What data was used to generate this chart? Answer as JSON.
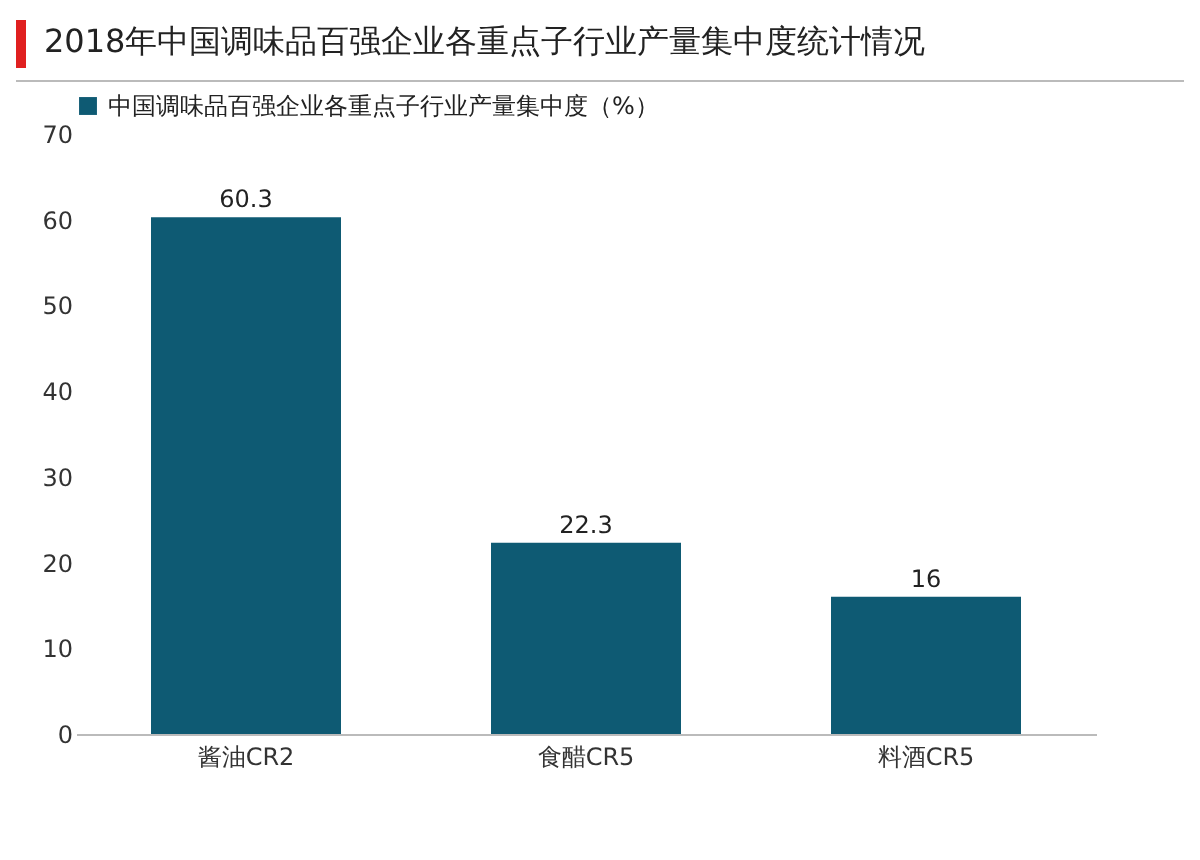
{
  "chart_data": {
    "type": "bar",
    "title": "2018年中国调味品百强企业各重点子行业产量集中度统计情况",
    "categories": [
      "酱油CR2",
      "食醋CR5",
      "料酒CR5"
    ],
    "series": [
      {
        "name": "中国调味品百强企业各重点子行业产量集中度（%）",
        "color": "#0e5a73",
        "values": [
          60.3,
          22.3,
          16
        ]
      }
    ],
    "ylim": [
      0,
      70
    ],
    "yticks": [
      0,
      10,
      20,
      30,
      40,
      50,
      60,
      70
    ],
    "data_labels": true,
    "legend": "top left",
    "grid": false
  }
}
